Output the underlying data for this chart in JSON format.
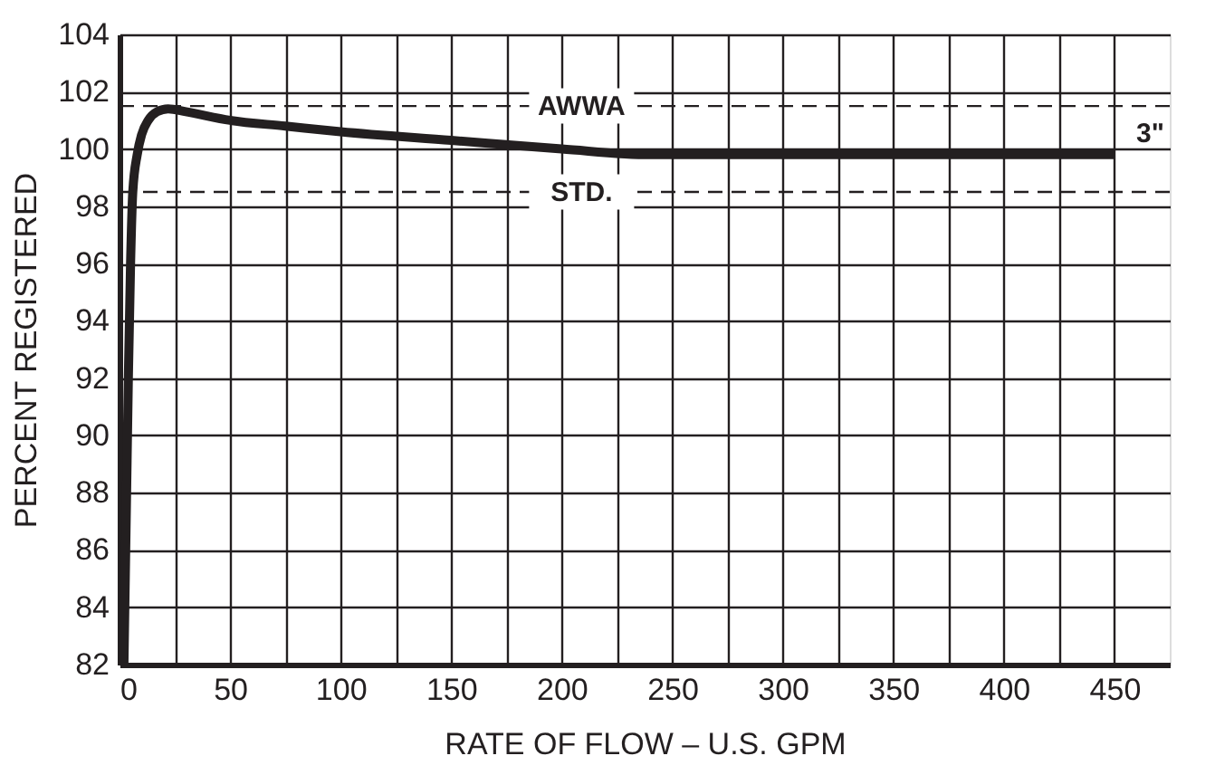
{
  "chart_data": {
    "type": "line",
    "xlabel": "RATE OF FLOW – U.S. GPM",
    "ylabel": "PERCENT REGISTERED",
    "xlim": [
      0,
      475
    ],
    "ylim": [
      82,
      104
    ],
    "xticks": [
      0,
      {
        "value": 25,
        "label": null
      },
      50,
      {
        "value": 75,
        "label": null
      },
      100,
      {
        "value": 125,
        "label": null
      },
      150,
      {
        "value": 175,
        "label": null
      },
      200,
      {
        "value": 225,
        "label": null
      },
      250,
      {
        "value": 275,
        "label": null
      },
      300,
      {
        "value": 325,
        "label": null
      },
      350,
      {
        "value": 375,
        "label": null
      },
      400,
      {
        "value": 425,
        "label": null
      },
      450
    ],
    "yticks": [
      82,
      84,
      86,
      88,
      90,
      92,
      94,
      96,
      98,
      100,
      102,
      104
    ],
    "grid": true,
    "legend": false,
    "marker": "none",
    "line_style": "solid",
    "series": [
      {
        "name": "3\"",
        "color": "#231f20",
        "x": [
          2,
          4,
          5,
          6,
          8,
          10,
          13,
          17,
          22,
          30,
          50,
          75,
          100,
          150,
          200,
          240,
          260,
          450
        ],
        "values": [
          82,
          92,
          96,
          98.5,
          99.8,
          100.5,
          101.0,
          101.3,
          101.4,
          101.3,
          101.0,
          100.8,
          100.6,
          100.3,
          100.0,
          99.8,
          99.8,
          99.8
        ]
      }
    ],
    "ref_lines": [
      {
        "axis": "y",
        "value": 101.5,
        "label": "AWWA",
        "color": "#231f20",
        "line_style": "dashed"
      },
      {
        "axis": "y",
        "value": 98.5,
        "label": "STD.",
        "color": "#231f20",
        "line_style": "dashed"
      }
    ]
  }
}
